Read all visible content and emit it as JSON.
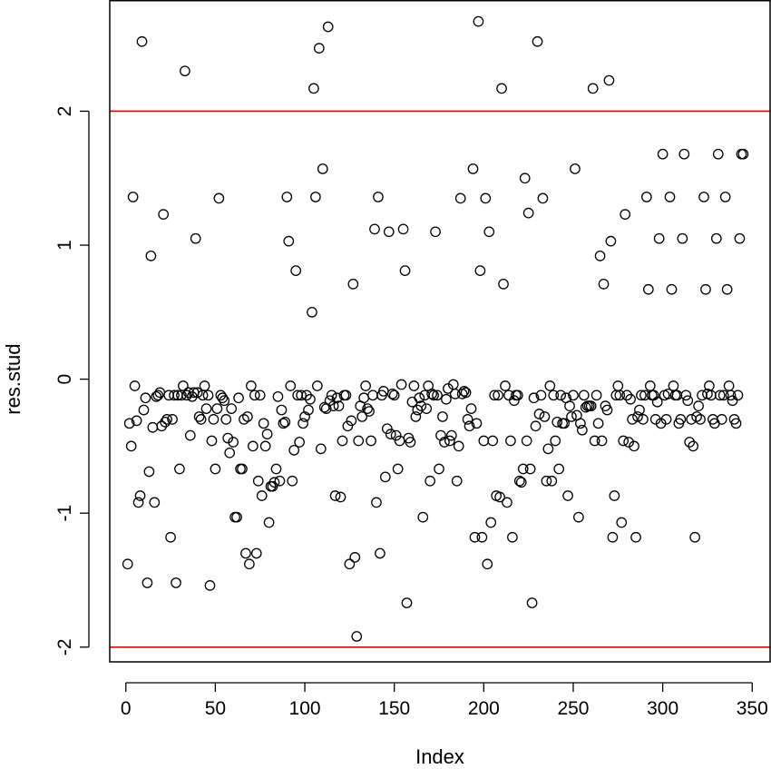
{
  "chart_data": {
    "type": "scatter",
    "title": "",
    "xlabel": "Index",
    "ylabel": "res.stud",
    "xlim": [
      -9,
      360
    ],
    "ylim": [
      -2.11,
      2.83
    ],
    "x_ticks": [
      0,
      50,
      100,
      150,
      200,
      250,
      300,
      350
    ],
    "y_ticks": [
      -2,
      -1,
      0,
      1,
      2
    ],
    "grid": false,
    "legend": "none",
    "marker": "open-circle",
    "marker_color": "#000000",
    "reference_lines": [
      {
        "axis": "y",
        "value": 2,
        "color": "#e00000"
      },
      {
        "axis": "y",
        "value": -2,
        "color": "#e00000"
      }
    ],
    "points": [
      [
        1,
        -1.38
      ],
      [
        2,
        -0.33
      ],
      [
        3,
        -0.5
      ],
      [
        4,
        1.36
      ],
      [
        5,
        -0.05
      ],
      [
        6,
        -0.31
      ],
      [
        7,
        -0.92
      ],
      [
        8,
        -0.87
      ],
      [
        9,
        2.52
      ],
      [
        10,
        -0.23
      ],
      [
        11,
        -0.14
      ],
      [
        12,
        -1.52
      ],
      [
        13,
        -0.69
      ],
      [
        14,
        0.92
      ],
      [
        15,
        -0.36
      ],
      [
        16,
        -0.92
      ],
      [
        17,
        -0.13
      ],
      [
        18,
        -0.12
      ],
      [
        19,
        -0.1
      ],
      [
        20,
        -0.35
      ],
      [
        21,
        1.23
      ],
      [
        22,
        -0.32
      ],
      [
        23,
        -0.3
      ],
      [
        24,
        -0.12
      ],
      [
        25,
        -1.18
      ],
      [
        26,
        -0.3
      ],
      [
        27,
        -0.12
      ],
      [
        28,
        -1.52
      ],
      [
        29,
        -0.12
      ],
      [
        30,
        -0.67
      ],
      [
        31,
        -0.12
      ],
      [
        32,
        -0.05
      ],
      [
        33,
        2.3
      ],
      [
        34,
        -0.12
      ],
      [
        35,
        -0.1
      ],
      [
        36,
        -0.42
      ],
      [
        37,
        -0.13
      ],
      [
        38,
        -0.1
      ],
      [
        39,
        1.05
      ],
      [
        40,
        -0.1
      ],
      [
        41,
        -0.28
      ],
      [
        42,
        -0.3
      ],
      [
        43,
        -0.12
      ],
      [
        44,
        -0.05
      ],
      [
        45,
        -0.22
      ],
      [
        46,
        -0.12
      ],
      [
        47,
        -1.54
      ],
      [
        48,
        -0.46
      ],
      [
        49,
        -0.3
      ],
      [
        50,
        -0.67
      ],
      [
        51,
        -0.22
      ],
      [
        52,
        1.35
      ],
      [
        53,
        -0.12
      ],
      [
        54,
        -0.14
      ],
      [
        55,
        -0.16
      ],
      [
        56,
        -0.3
      ],
      [
        57,
        -0.44
      ],
      [
        58,
        -0.55
      ],
      [
        59,
        -0.22
      ],
      [
        60,
        -0.47
      ],
      [
        61,
        -1.03
      ],
      [
        62,
        -1.03
      ],
      [
        63,
        -0.14
      ],
      [
        64,
        -0.67
      ],
      [
        65,
        -0.67
      ],
      [
        66,
        -0.3
      ],
      [
        67,
        -1.3
      ],
      [
        68,
        -0.28
      ],
      [
        69,
        -1.38
      ],
      [
        70,
        -0.05
      ],
      [
        71,
        -0.5
      ],
      [
        72,
        -0.12
      ],
      [
        73,
        -1.3
      ],
      [
        74,
        -0.76
      ],
      [
        75,
        -0.12
      ],
      [
        76,
        -0.87
      ],
      [
        77,
        -0.33
      ],
      [
        78,
        -0.5
      ],
      [
        79,
        -0.41
      ],
      [
        80,
        -1.07
      ],
      [
        81,
        -0.8
      ],
      [
        82,
        -0.8
      ],
      [
        83,
        -0.77
      ],
      [
        84,
        -0.67
      ],
      [
        85,
        -0.13
      ],
      [
        86,
        -0.76
      ],
      [
        87,
        -0.23
      ],
      [
        88,
        -0.33
      ],
      [
        89,
        -0.32
      ],
      [
        90,
        1.36
      ],
      [
        91,
        1.03
      ],
      [
        92,
        -0.05
      ],
      [
        93,
        -0.76
      ],
      [
        94,
        -0.53
      ],
      [
        95,
        0.81
      ],
      [
        96,
        -0.12
      ],
      [
        97,
        -0.47
      ],
      [
        98,
        -0.12
      ],
      [
        99,
        -0.33
      ],
      [
        100,
        -0.28
      ],
      [
        101,
        -0.12
      ],
      [
        102,
        -0.23
      ],
      [
        103,
        -0.15
      ],
      [
        104,
        0.5
      ],
      [
        105,
        2.17
      ],
      [
        106,
        1.36
      ],
      [
        107,
        -0.05
      ],
      [
        108,
        2.47
      ],
      [
        109,
        -0.52
      ],
      [
        110,
        1.57
      ],
      [
        111,
        -0.21
      ],
      [
        112,
        -0.22
      ],
      [
        113,
        2.63
      ],
      [
        114,
        -0.16
      ],
      [
        115,
        -0.12
      ],
      [
        116,
        -0.2
      ],
      [
        117,
        -0.87
      ],
      [
        118,
        -0.14
      ],
      [
        119,
        -0.2
      ],
      [
        120,
        -0.88
      ],
      [
        121,
        -0.46
      ],
      [
        122,
        -0.12
      ],
      [
        123,
        -0.12
      ],
      [
        124,
        -0.35
      ],
      [
        125,
        -1.38
      ],
      [
        126,
        -0.31
      ],
      [
        127,
        0.71
      ],
      [
        128,
        -1.33
      ],
      [
        129,
        -1.92
      ],
      [
        130,
        -0.46
      ],
      [
        131,
        -0.2
      ],
      [
        132,
        -0.28
      ],
      [
        133,
        -0.14
      ],
      [
        134,
        -0.05
      ],
      [
        135,
        -0.22
      ],
      [
        136,
        -0.24
      ],
      [
        137,
        -0.46
      ],
      [
        138,
        -0.12
      ],
      [
        139,
        1.12
      ],
      [
        140,
        -0.92
      ],
      [
        141,
        1.36
      ],
      [
        142,
        -1.3
      ],
      [
        143,
        -0.12
      ],
      [
        144,
        -0.09
      ],
      [
        145,
        -0.73
      ],
      [
        146,
        -0.37
      ],
      [
        147,
        1.1
      ],
      [
        148,
        -0.41
      ],
      [
        149,
        -0.11
      ],
      [
        150,
        -0.12
      ],
      [
        151,
        -0.42
      ],
      [
        152,
        -0.67
      ],
      [
        153,
        -0.46
      ],
      [
        154,
        -0.04
      ],
      [
        155,
        1.12
      ],
      [
        156,
        0.81
      ],
      [
        157,
        -1.67
      ],
      [
        158,
        -0.44
      ],
      [
        159,
        -0.47
      ],
      [
        160,
        -0.17
      ],
      [
        161,
        -0.05
      ],
      [
        162,
        -0.28
      ],
      [
        163,
        -0.23
      ],
      [
        164,
        -0.14
      ],
      [
        165,
        -0.2
      ],
      [
        166,
        -1.03
      ],
      [
        167,
        -0.12
      ],
      [
        168,
        -0.22
      ],
      [
        169,
        -0.05
      ],
      [
        170,
        -0.76
      ],
      [
        171,
        -0.11
      ],
      [
        172,
        -0.12
      ],
      [
        173,
        1.1
      ],
      [
        174,
        -0.12
      ],
      [
        175,
        -0.67
      ],
      [
        176,
        -0.42
      ],
      [
        177,
        -0.28
      ],
      [
        178,
        -0.47
      ],
      [
        179,
        -0.15
      ],
      [
        180,
        -0.07
      ],
      [
        181,
        -0.46
      ],
      [
        182,
        -0.42
      ],
      [
        183,
        -0.04
      ],
      [
        184,
        -0.11
      ],
      [
        185,
        -0.76
      ],
      [
        186,
        -0.5
      ],
      [
        187,
        1.35
      ],
      [
        188,
        -0.11
      ],
      [
        189,
        -0.09
      ],
      [
        190,
        -0.1
      ],
      [
        191,
        -0.3
      ],
      [
        192,
        -0.35
      ],
      [
        193,
        -0.22
      ],
      [
        194,
        1.57
      ],
      [
        195,
        -1.18
      ],
      [
        196,
        -0.33
      ],
      [
        197,
        2.67
      ],
      [
        198,
        0.81
      ],
      [
        199,
        -1.18
      ],
      [
        200,
        -0.46
      ],
      [
        201,
        1.35
      ],
      [
        202,
        -1.38
      ],
      [
        203,
        1.1
      ],
      [
        204,
        -1.07
      ],
      [
        205,
        -0.46
      ],
      [
        206,
        -0.12
      ],
      [
        207,
        -0.87
      ],
      [
        208,
        -0.12
      ],
      [
        209,
        -0.88
      ],
      [
        210,
        2.17
      ],
      [
        211,
        0.71
      ],
      [
        212,
        -0.05
      ],
      [
        213,
        -0.92
      ],
      [
        214,
        -0.12
      ],
      [
        215,
        -0.46
      ],
      [
        216,
        -1.18
      ],
      [
        217,
        -0.16
      ],
      [
        218,
        -0.12
      ],
      [
        219,
        -0.12
      ],
      [
        220,
        -0.76
      ],
      [
        221,
        -0.77
      ],
      [
        222,
        -0.67
      ],
      [
        223,
        1.5
      ],
      [
        224,
        -0.46
      ],
      [
        225,
        1.24
      ],
      [
        226,
        -0.67
      ],
      [
        227,
        -1.67
      ],
      [
        228,
        -0.14
      ],
      [
        229,
        -0.35
      ],
      [
        230,
        2.52
      ],
      [
        231,
        -0.26
      ],
      [
        232,
        -0.12
      ],
      [
        233,
        1.35
      ],
      [
        234,
        -0.28
      ],
      [
        235,
        -0.76
      ],
      [
        236,
        -0.52
      ],
      [
        237,
        -0.05
      ],
      [
        238,
        -0.76
      ],
      [
        239,
        -0.12
      ],
      [
        240,
        -0.46
      ],
      [
        241,
        -0.32
      ],
      [
        242,
        -0.67
      ],
      [
        243,
        -0.12
      ],
      [
        244,
        -0.33
      ],
      [
        245,
        -0.33
      ],
      [
        246,
        -0.14
      ],
      [
        247,
        -0.87
      ],
      [
        248,
        -0.2
      ],
      [
        249,
        -0.28
      ],
      [
        250,
        -0.12
      ],
      [
        251,
        1.57
      ],
      [
        252,
        -0.27
      ],
      [
        253,
        -1.03
      ],
      [
        254,
        -0.33
      ],
      [
        255,
        -0.38
      ],
      [
        256,
        -0.12
      ],
      [
        257,
        -0.21
      ],
      [
        258,
        -0.2
      ],
      [
        259,
        -0.2
      ],
      [
        260,
        -0.2
      ],
      [
        261,
        2.17
      ],
      [
        262,
        -0.46
      ],
      [
        263,
        -0.12
      ],
      [
        264,
        -0.33
      ],
      [
        265,
        0.92
      ],
      [
        266,
        -0.46
      ],
      [
        267,
        0.71
      ],
      [
        268,
        -0.2
      ],
      [
        269,
        -0.23
      ],
      [
        270,
        2.23
      ],
      [
        271,
        1.03
      ],
      [
        272,
        -1.18
      ],
      [
        273,
        -0.87
      ],
      [
        274,
        -0.12
      ],
      [
        275,
        -0.05
      ],
      [
        276,
        -0.12
      ],
      [
        277,
        -1.07
      ],
      [
        278,
        -0.46
      ],
      [
        279,
        1.23
      ],
      [
        280,
        -0.12
      ],
      [
        281,
        -0.47
      ],
      [
        282,
        -0.15
      ],
      [
        283,
        -0.3
      ],
      [
        284,
        -0.5
      ],
      [
        285,
        -1.18
      ],
      [
        286,
        -0.28
      ],
      [
        287,
        -0.23
      ],
      [
        288,
        -0.12
      ],
      [
        289,
        -0.3
      ],
      [
        290,
        -0.12
      ],
      [
        291,
        1.36
      ],
      [
        292,
        0.67
      ],
      [
        293,
        -0.05
      ],
      [
        294,
        -0.12
      ],
      [
        295,
        -0.12
      ],
      [
        296,
        -0.3
      ],
      [
        297,
        -0.17
      ],
      [
        298,
        1.05
      ],
      [
        299,
        -0.33
      ],
      [
        300,
        1.68
      ],
      [
        301,
        -0.12
      ],
      [
        302,
        -0.3
      ],
      [
        303,
        -0.11
      ],
      [
        304,
        1.36
      ],
      [
        305,
        0.67
      ],
      [
        306,
        -0.05
      ],
      [
        307,
        -0.12
      ],
      [
        308,
        -0.12
      ],
      [
        309,
        -0.33
      ],
      [
        310,
        -0.3
      ],
      [
        311,
        1.05
      ],
      [
        312,
        1.68
      ],
      [
        313,
        -0.12
      ],
      [
        314,
        -0.16
      ],
      [
        315,
        -0.47
      ],
      [
        316,
        -0.3
      ],
      [
        317,
        -0.5
      ],
      [
        318,
        -1.18
      ],
      [
        319,
        -0.28
      ],
      [
        320,
        -0.2
      ],
      [
        321,
        -0.3
      ],
      [
        322,
        -0.12
      ],
      [
        323,
        1.36
      ],
      [
        324,
        0.67
      ],
      [
        325,
        -0.11
      ],
      [
        326,
        -0.05
      ],
      [
        327,
        -0.12
      ],
      [
        328,
        -0.3
      ],
      [
        329,
        -0.33
      ],
      [
        330,
        1.05
      ],
      [
        331,
        1.68
      ],
      [
        332,
        -0.12
      ],
      [
        333,
        -0.3
      ],
      [
        334,
        -0.12
      ],
      [
        335,
        1.36
      ],
      [
        336,
        0.67
      ],
      [
        337,
        -0.05
      ],
      [
        338,
        -0.12
      ],
      [
        339,
        -0.16
      ],
      [
        340,
        -0.3
      ],
      [
        341,
        -0.33
      ],
      [
        342,
        -0.12
      ],
      [
        343,
        1.05
      ],
      [
        344,
        1.68
      ],
      [
        345,
        1.68
      ]
    ]
  }
}
